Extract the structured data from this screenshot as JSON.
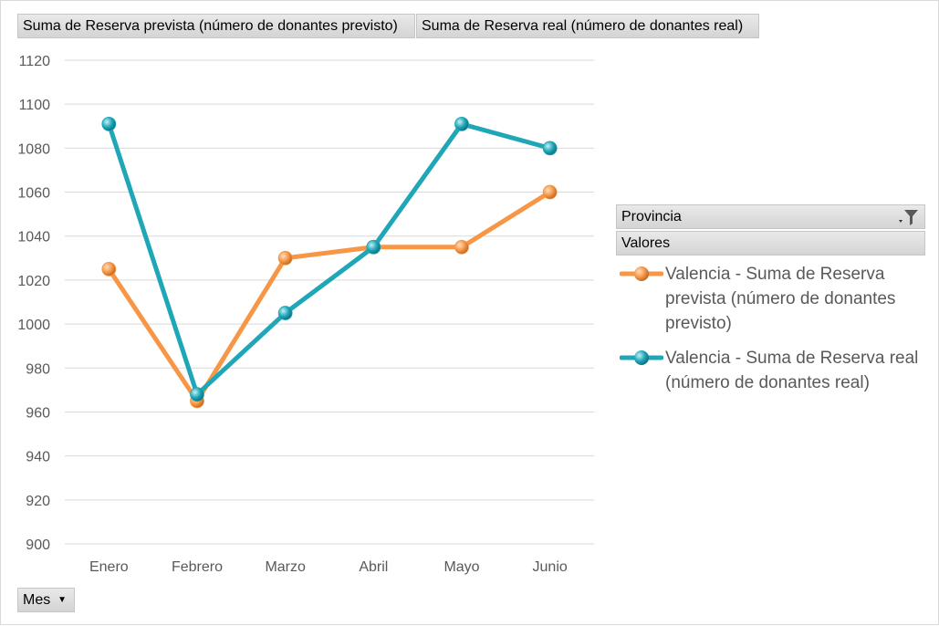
{
  "pivot": {
    "value_fields": [
      "Suma de Reserva prevista (número de donantes previsto)",
      "Suma de Reserva real (número de donantes real)"
    ],
    "axis_field": "Mes",
    "legend_field": "Provincia",
    "legend_values_label": "Valores",
    "dropdown_icon": "dropdown-arrow-icon",
    "filter_icon": "funnel-filter-icon"
  },
  "chart_data": {
    "type": "line",
    "categories": [
      "Enero",
      "Febrero",
      "Marzo",
      "Abril",
      "Mayo",
      "Junio"
    ],
    "series": [
      {
        "name": "Valencia - Suma de Reserva prevista (número de donantes previsto)",
        "values": [
          1025,
          965,
          1030,
          1035,
          1035,
          1060
        ],
        "color": "#f79646"
      },
      {
        "name": "Valencia - Suma de Reserva real (número de donantes real)",
        "values": [
          1091,
          968,
          1005,
          1035,
          1091,
          1080
        ],
        "color": "#1fa7b8"
      }
    ],
    "ylim": [
      900,
      1120
    ],
    "yticks": [
      900,
      920,
      940,
      960,
      980,
      1000,
      1020,
      1040,
      1060,
      1080,
      1100,
      1120
    ],
    "grid": true,
    "legend_position": "right"
  }
}
